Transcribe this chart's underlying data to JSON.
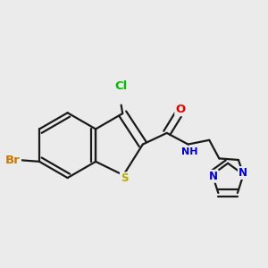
{
  "background_color": "#ebebeb",
  "fig_size": [
    3.0,
    3.0
  ],
  "dpi": 100,
  "bond_color": "#1a1a1a",
  "bond_lw": 1.6,
  "atom_colors": {
    "Cl": "#00bb00",
    "Br": "#cc7700",
    "S": "#bbaa00",
    "O": "#ee0000",
    "N": "#0000dd",
    "H": "#009988",
    "C": "#1a1a1a"
  },
  "fs": 8.5
}
